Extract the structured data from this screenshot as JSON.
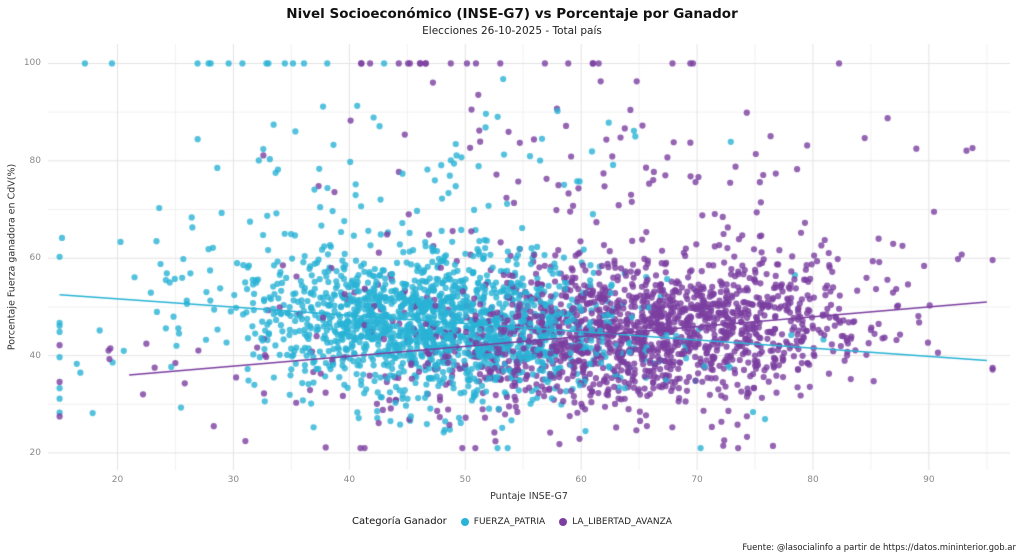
{
  "page": {
    "source": "Fuente: @lasocialinfo a partir de https://datos.mininterior.gob.ar"
  },
  "chart_data": {
    "type": "scatter",
    "title": "Nivel Socioeconómico (INSE-G7) vs Porcentaje por Ganador",
    "subtitle": "Elecciones 26-10-2025 - Total país",
    "xlabel": "Puntaje INSE-G7",
    "ylabel": "Porcentaje Fuerza ganadora en CdV(%)",
    "xlim": [
      14,
      97
    ],
    "ylim": [
      16.5,
      104
    ],
    "x_ticks": [
      20,
      30,
      40,
      50,
      60,
      70,
      80,
      90
    ],
    "y_ticks": [
      20,
      40,
      60,
      80,
      100
    ],
    "grid": true,
    "grid_major_color": "#e4e4e4",
    "grid_minor_color": "#f2f2f2",
    "legend_title": "Categoría Ganador",
    "legend_position": "bottom",
    "point_radius": 3.1,
    "point_alpha": 0.8,
    "seed": 7,
    "series": [
      {
        "name": "FUERZA_PATRIA",
        "color": "#29b3d6",
        "trend": {
          "x": [
            15,
            95
          ],
          "y": [
            52.5,
            39
          ]
        },
        "clusters": [
          {
            "n": 1450,
            "x_mean": 47.5,
            "x_sd": 7.5,
            "slope": -0.12,
            "y_mean": 47,
            "y_sd": 7
          },
          {
            "n": 200,
            "x_mean": 42,
            "x_sd": 15,
            "slope": -0.1,
            "y_mean": 46,
            "y_sd": 11
          },
          {
            "n": 60,
            "x_mean": 46,
            "x_sd": 11,
            "slope": 0,
            "y_mean": 79,
            "y_sd": 7
          },
          {
            "n": 14,
            "x_mean": 31,
            "x_sd": 9,
            "slope": 0,
            "y_mean": 100,
            "y_sd": 0
          }
        ]
      },
      {
        "name": "LA_LIBERTAD_AVANZA",
        "color": "#7b3fa0",
        "trend": {
          "x": [
            21,
            95
          ],
          "y": [
            36,
            51
          ]
        },
        "clusters": [
          {
            "n": 1450,
            "x_mean": 66,
            "x_sd": 9.5,
            "slope": 0.16,
            "y_mean": 45.5,
            "y_sd": 7.5
          },
          {
            "n": 200,
            "x_mean": 58,
            "x_sd": 17,
            "slope": 0.1,
            "y_mean": 43,
            "y_sd": 11
          },
          {
            "n": 70,
            "x_mean": 63,
            "x_sd": 13,
            "slope": 0,
            "y_mean": 81,
            "y_sd": 8
          },
          {
            "n": 22,
            "x_mean": 53,
            "x_sd": 14,
            "slope": 0,
            "y_mean": 100,
            "y_sd": 0
          }
        ]
      }
    ]
  }
}
